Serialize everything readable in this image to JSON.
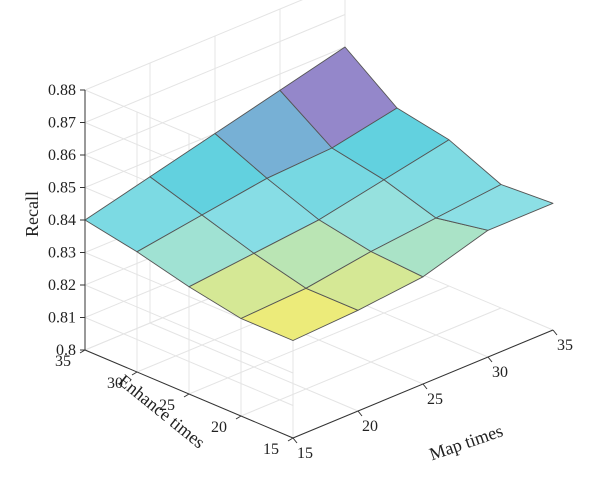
{
  "chart_data": {
    "type": "surface",
    "xlabel": "Map times",
    "ylabel": "Enhance times",
    "zlabel": "Recall",
    "x": [
      15,
      20,
      25,
      30,
      35
    ],
    "y": [
      15,
      20,
      25,
      30,
      35
    ],
    "x_ticks": [
      "15",
      "20",
      "25",
      "30",
      "35"
    ],
    "y_ticks": [
      "15",
      "20",
      "25",
      "30",
      "35"
    ],
    "z_ticks": [
      "0.8",
      "0.81",
      "0.82",
      "0.83",
      "0.84",
      "0.85",
      "0.86",
      "0.87",
      "0.88"
    ],
    "zlim": [
      0.8,
      0.88
    ],
    "z": [
      [
        0.83,
        0.831,
        0.833,
        0.839,
        0.839
      ],
      [
        0.83,
        0.831,
        0.834,
        0.836,
        0.838
      ],
      [
        0.833,
        0.835,
        0.837,
        0.841,
        0.845
      ],
      [
        0.837,
        0.84,
        0.843,
        0.844,
        0.848
      ],
      [
        0.84,
        0.845,
        0.85,
        0.855,
        0.86
      ]
    ],
    "z_note": "z[i][j]: i = Enhance times index, j = Map times index",
    "colormap": [
      "#7a4fb0",
      "#9a7fc8",
      "#5fd0de",
      "#8fe0e6",
      "#f3ec72"
    ],
    "grid": true
  }
}
